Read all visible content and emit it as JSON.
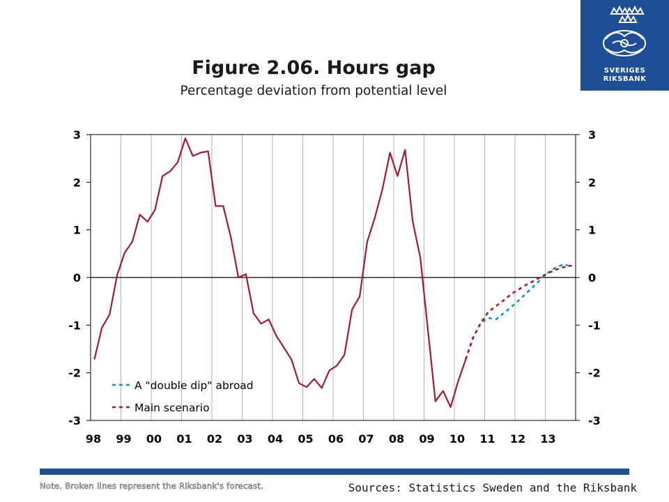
{
  "logo": {
    "line1": "SVERIGES",
    "line2": "RIKSBANK",
    "bg_color": "#1e4f95"
  },
  "footer": {
    "note": "Note. Broken lines represent the Riksbank's forecast.",
    "sources": "Sources: Statistics Sweden and the Riksbank"
  },
  "chart_data": {
    "type": "line",
    "title": "Figure 2.06. Hours gap",
    "subtitle": "Percentage deviation from potential level",
    "x_tick_labels": [
      "98",
      "99",
      "00",
      "01",
      "02",
      "03",
      "04",
      "05",
      "06",
      "07",
      "08",
      "09",
      "10",
      "11",
      "12",
      "13"
    ],
    "x_range": [
      1998.0,
      2014.0
    ],
    "ylim": [
      -3,
      3
    ],
    "y_ticks": [
      3,
      2,
      1,
      0,
      -1,
      -2,
      -3
    ],
    "grid": "vertical",
    "legend_position": "bottom-left",
    "series": [
      {
        "name": "Main scenario",
        "color": "#a6192e",
        "style": "solid",
        "points": [
          [
            1998.125,
            -1.72
          ],
          [
            1998.375,
            -1.05
          ],
          [
            1998.625,
            -0.78
          ],
          [
            1998.875,
            0.05
          ],
          [
            1999.125,
            0.52
          ],
          [
            1999.375,
            0.75
          ],
          [
            1999.625,
            1.32
          ],
          [
            1999.875,
            1.17
          ],
          [
            2000.125,
            1.42
          ],
          [
            2000.375,
            2.13
          ],
          [
            2000.625,
            2.23
          ],
          [
            2000.875,
            2.42
          ],
          [
            2001.125,
            2.92
          ],
          [
            2001.375,
            2.55
          ],
          [
            2001.625,
            2.62
          ],
          [
            2001.875,
            2.65
          ],
          [
            2002.125,
            1.5
          ],
          [
            2002.375,
            1.5
          ],
          [
            2002.625,
            0.85
          ],
          [
            2002.875,
            0.0
          ],
          [
            2003.125,
            0.07
          ],
          [
            2003.375,
            -0.75
          ],
          [
            2003.625,
            -0.97
          ],
          [
            2003.875,
            -0.88
          ],
          [
            2004.125,
            -1.22
          ],
          [
            2004.375,
            -1.47
          ],
          [
            2004.625,
            -1.72
          ],
          [
            2004.875,
            -2.22
          ],
          [
            2005.125,
            -2.3
          ],
          [
            2005.375,
            -2.13
          ],
          [
            2005.625,
            -2.32
          ],
          [
            2005.875,
            -1.95
          ],
          [
            2006.125,
            -1.85
          ],
          [
            2006.375,
            -1.62
          ],
          [
            2006.625,
            -0.67
          ],
          [
            2006.875,
            -0.4
          ],
          [
            2007.125,
            0.75
          ],
          [
            2007.375,
            1.25
          ],
          [
            2007.625,
            1.85
          ],
          [
            2007.875,
            2.62
          ],
          [
            2008.125,
            2.13
          ],
          [
            2008.375,
            2.68
          ],
          [
            2008.625,
            1.18
          ],
          [
            2008.875,
            0.42
          ],
          [
            2009.125,
            -1.08
          ],
          [
            2009.375,
            -2.6
          ],
          [
            2009.625,
            -2.38
          ],
          [
            2009.875,
            -2.72
          ],
          [
            2010.125,
            -2.18
          ],
          [
            2010.375,
            -1.72
          ]
        ]
      },
      {
        "name": "A \"double dip\" abroad",
        "color": "#1a8fc4",
        "style": "dashed",
        "points": [
          [
            2010.375,
            -1.72
          ],
          [
            2010.625,
            -1.25
          ],
          [
            2010.875,
            -0.95
          ],
          [
            2011.125,
            -0.85
          ],
          [
            2011.375,
            -0.88
          ],
          [
            2011.625,
            -0.75
          ],
          [
            2011.875,
            -0.62
          ],
          [
            2012.125,
            -0.48
          ],
          [
            2012.375,
            -0.33
          ],
          [
            2012.625,
            -0.18
          ],
          [
            2012.875,
            -0.02
          ],
          [
            2013.125,
            0.12
          ],
          [
            2013.375,
            0.22
          ],
          [
            2013.625,
            0.28
          ],
          [
            2013.875,
            0.22
          ]
        ]
      },
      {
        "name": "Main scenario",
        "color": "#a6192e",
        "style": "dashed",
        "points": [
          [
            2010.375,
            -1.72
          ],
          [
            2010.625,
            -1.25
          ],
          [
            2010.875,
            -0.95
          ],
          [
            2011.125,
            -0.72
          ],
          [
            2011.375,
            -0.6
          ],
          [
            2011.625,
            -0.48
          ],
          [
            2011.875,
            -0.35
          ],
          [
            2012.125,
            -0.25
          ],
          [
            2012.375,
            -0.15
          ],
          [
            2012.625,
            -0.07
          ],
          [
            2012.875,
            0.02
          ],
          [
            2013.125,
            0.1
          ],
          [
            2013.375,
            0.17
          ],
          [
            2013.625,
            0.22
          ],
          [
            2013.875,
            0.25
          ]
        ]
      }
    ],
    "legend": [
      {
        "label": "A \"double dip\" abroad",
        "color": "#1a8fc4"
      },
      {
        "label": "Main scenario",
        "color": "#a6192e"
      }
    ]
  }
}
